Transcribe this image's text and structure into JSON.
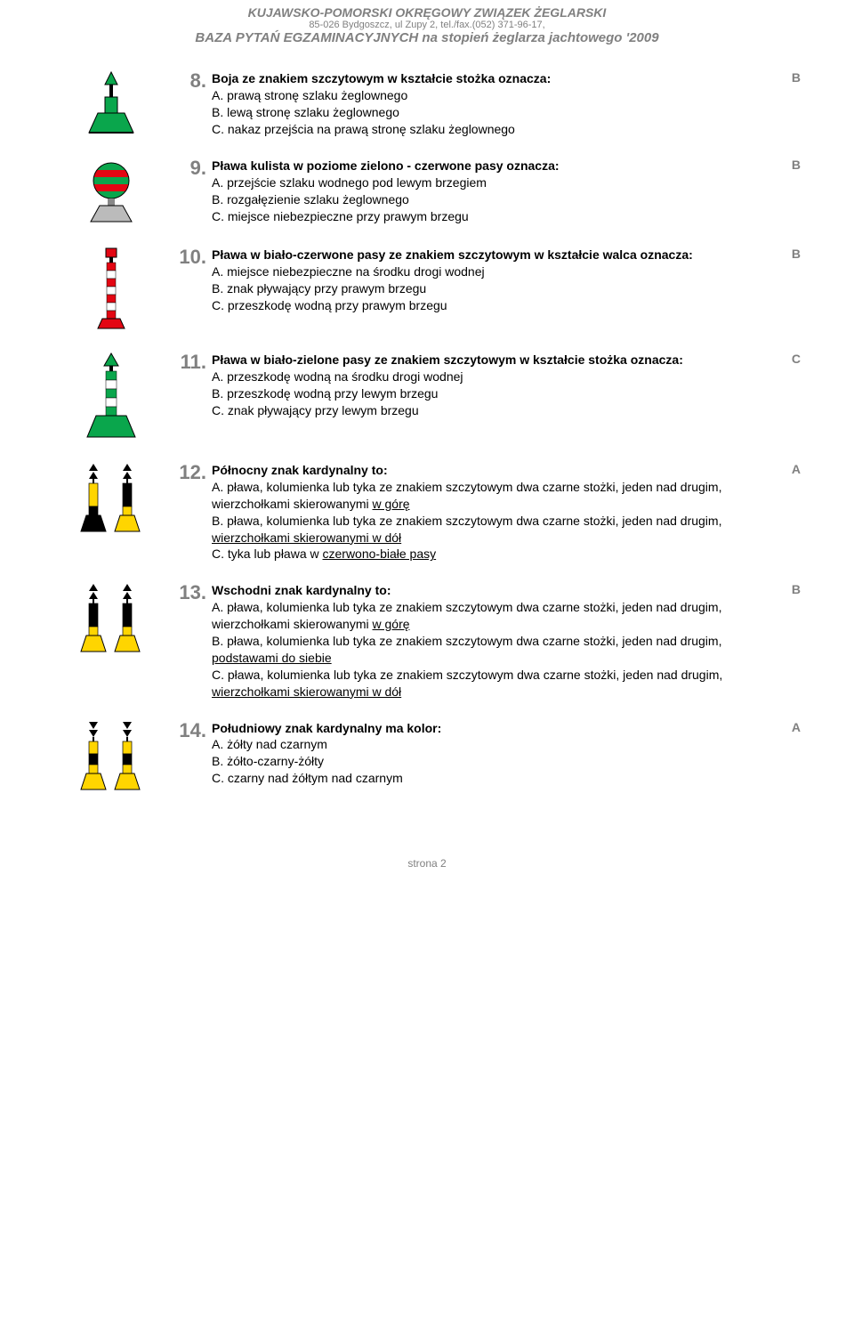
{
  "header": {
    "line1": "KUJAWSKO-POMORSKI OKRĘGOWY ZWIĄZEK ŻEGLARSKI",
    "line2": "85-026 Bydgoszcz, ul Zupy 2, tel./fax.(052) 371-96-17,",
    "line3": "BAZA PYTAŃ EGZAMINACYJNYCH na stopień żeglarza jachtowego '2009"
  },
  "colors": {
    "header_text": "#808080",
    "num_text": "#808080",
    "body_text": "#000000",
    "green": "#0aa64c",
    "red": "#e30613",
    "white": "#ffffff",
    "yellow": "#ffd500",
    "black": "#000000"
  },
  "questions": [
    {
      "num": "8.",
      "stem": "Boja ze znakiem szczytowym w kształcie stożka oznacza:",
      "opts": [
        "A. prawą stronę szlaku żeglownego",
        "B. lewą stronę szlaku żeglownego",
        "C. nakaz przejścia na prawą stronę szlaku żeglownego"
      ],
      "answer": "B",
      "icon": "q8"
    },
    {
      "num": "9.",
      "stem": "Pława kulista w poziome zielono - czerwone pasy oznacza:",
      "opts": [
        "A. przejście szlaku wodnego pod lewym brzegiem",
        "B. rozgałęzienie szlaku żeglownego",
        "C. miejsce niebezpieczne przy prawym brzegu"
      ],
      "answer": "B",
      "icon": "q9"
    },
    {
      "num": "10.",
      "stem": "Pława  w biało-czerwone pasy ze znakiem szczytowym w kształcie walca oznacza:",
      "opts": [
        "A. miejsce niebezpieczne na środku drogi wodnej",
        "B. znak pływający przy prawym brzegu",
        "C. przeszkodę wodną przy prawym brzegu"
      ],
      "answer": "B",
      "icon": "q10"
    },
    {
      "num": "11.",
      "stem": "Pława  w biało-zielone pasy ze znakiem szczytowym w kształcie stożka oznacza:",
      "opts": [
        "A. przeszkodę wodną  na środku drogi wodnej",
        "B. przeszkodę wodną przy lewym brzegu",
        "C. znak pływający przy lewym brzegu"
      ],
      "answer": "C",
      "icon": "q11"
    },
    {
      "num": "12.",
      "stem": "Północny znak kardynalny to:",
      "opts": [
        "A. pława, kolumienka lub tyka ze znakiem szczytowym dwa czarne stożki, jeden nad drugim, wierzchołkami skierowanymi <u>w górę</u>",
        "B. pława, kolumienka lub tyka ze znakiem szczytowym dwa czarne stożki, jeden nad drugim, <u>wierzchołkami skierowanymi w dół</u>",
        "C. tyka lub pława w <u>czerwono-białe pasy</u>"
      ],
      "answer": "A",
      "icon": "q12"
    },
    {
      "num": "13.",
      "stem": "Wschodni znak kardynalny to:",
      "opts": [
        "A. pława, kolumienka lub tyka ze znakiem szczytowym dwa czarne stożki, jeden nad drugim, wierzchołkami skierowanymi <u>w górę</u>",
        "B. pława, kolumienka lub tyka ze znakiem szczytowym dwa czarne stożki, jeden nad drugim, <u>podstawami do siebie</u>",
        "C. pława, kolumienka lub tyka ze znakiem szczytowym dwa czarne stożki, jeden nad drugim, <u>wierzchołkami skierowanymi w dół</u>"
      ],
      "answer": "B",
      "icon": "q13"
    },
    {
      "num": "14.",
      "stem": "Południowy znak kardynalny ma kolor:",
      "opts": [
        "A. żółty nad czarnym",
        "B. żółto-czarny-żółty",
        "C. czarny nad żółtym nad czarnym"
      ],
      "answer": "A",
      "icon": "q14"
    }
  ],
  "footer": {
    "page": "strona 2"
  }
}
